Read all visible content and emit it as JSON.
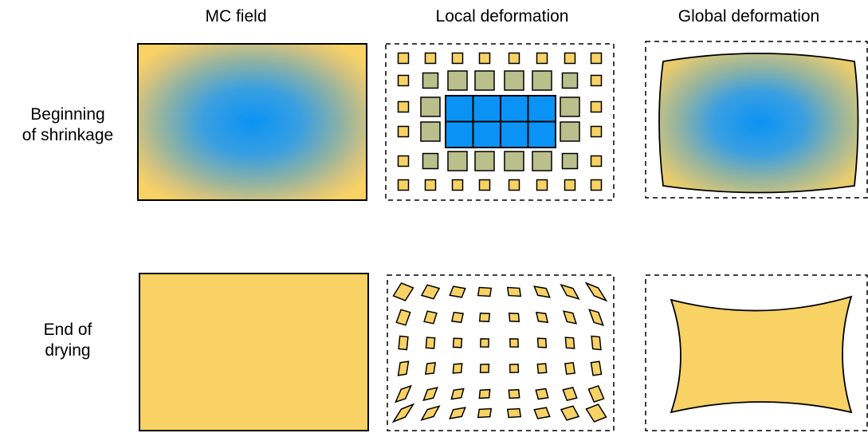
{
  "columns": {
    "mc_field": "MC field",
    "local_deformation": "Local deformation",
    "global_deformation": "Global deformation"
  },
  "rows": {
    "beginning_line1": "Beginning",
    "beginning_line2": "of shrinkage",
    "end_line1": "End of",
    "end_line2": "drying"
  },
  "colors": {
    "moist_blue": "#0a93f5",
    "dry_yellow": "#f8d265",
    "mid_green": "#b9c08c",
    "outline": "#000000"
  }
}
